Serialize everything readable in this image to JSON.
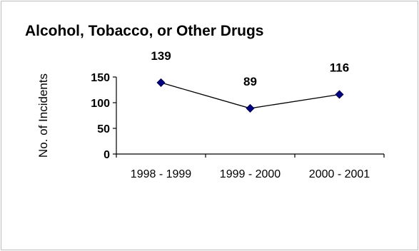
{
  "chart_data": {
    "type": "line",
    "title": "Alcohol, Tobacco, or Other Drugs",
    "xlabel": "",
    "ylabel": "No. of Incidents",
    "categories": [
      "1998 - 1999",
      "1999 - 2000",
      "2000 - 2001"
    ],
    "series": [
      {
        "values": [
          139,
          89,
          116
        ]
      }
    ],
    "data_labels": [
      "139",
      "89",
      "116"
    ],
    "y_ticks": [
      "0",
      "50",
      "100",
      "150"
    ],
    "ylim": [
      0,
      150
    ],
    "grid": false,
    "legend": "none",
    "colors": {
      "line": "#000000",
      "marker": "#000080",
      "marker_edge": "#000040"
    }
  }
}
